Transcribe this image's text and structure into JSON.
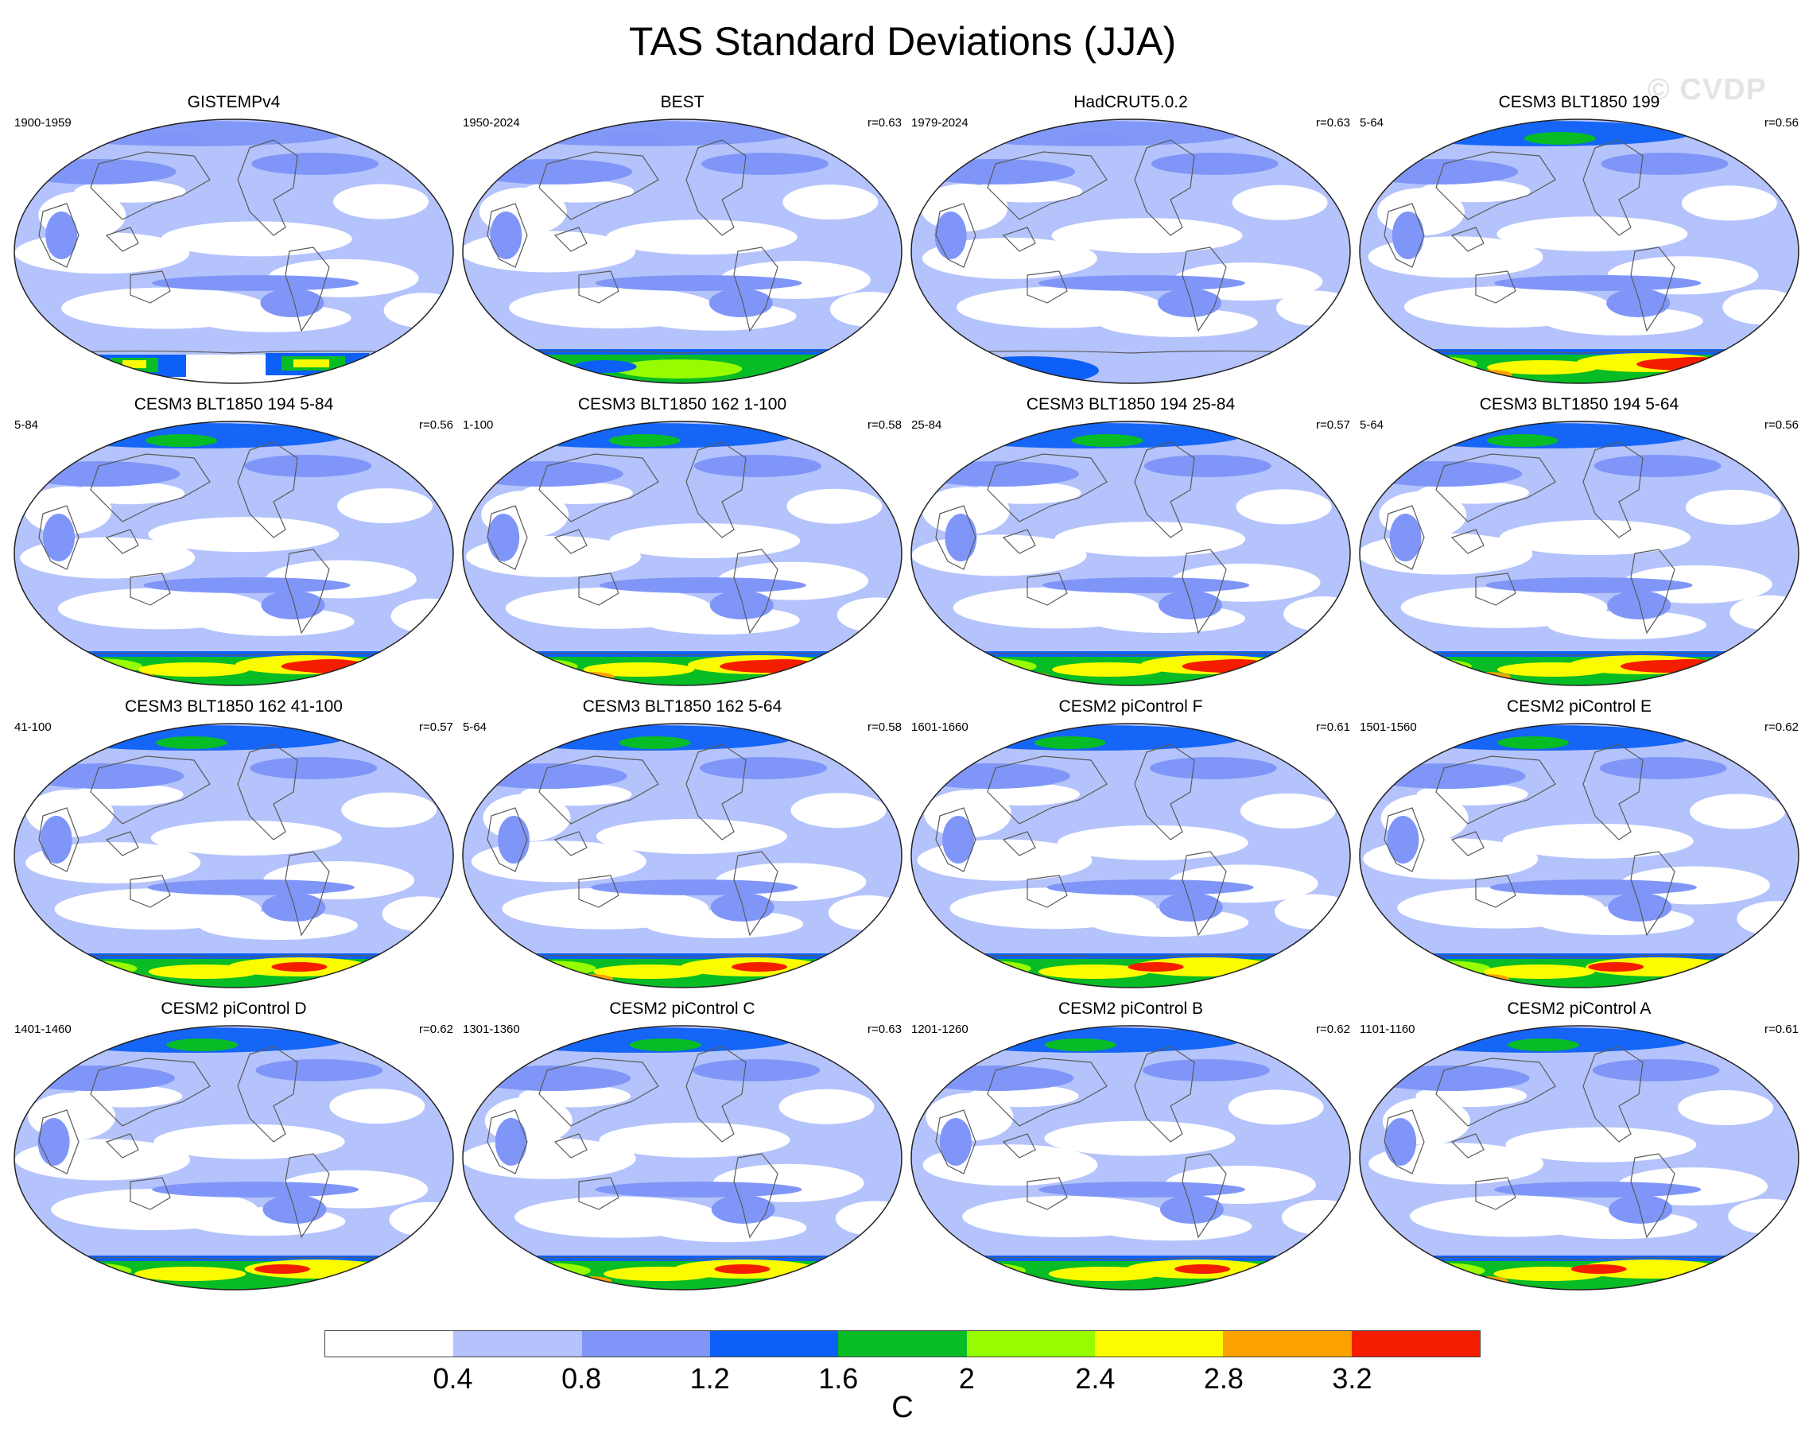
{
  "title": "TAS Standard Deviations (JJA)",
  "watermark": "© CVDP",
  "colors": {
    "levels": [
      "#ffffff",
      "#b4c3fb",
      "#7f96f8",
      "#0d60f7",
      "#08bc25",
      "#98fc00",
      "#fcfc00",
      "#fca200",
      "#f51d00"
    ],
    "coastline": "#5a5a5a",
    "outline": "#222222"
  },
  "panels": [
    {
      "title": "GISTEMPv4",
      "range": "1900-1959",
      "r": ""
    },
    {
      "title": "BEST",
      "range": "1950-2024",
      "r": "r=0.63"
    },
    {
      "title": "HadCRUT5.0.2",
      "range": "1979-2024",
      "r": "r=0.63"
    },
    {
      "title": "CESM3 BLT1850 199",
      "range": "5-64",
      "r": "r=0.56"
    },
    {
      "title": "CESM3 BLT1850 194 5-84",
      "range": "5-84",
      "r": "r=0.56"
    },
    {
      "title": "CESM3 BLT1850 162 1-100",
      "range": "1-100",
      "r": "r=0.58"
    },
    {
      "title": "CESM3 BLT1850 194 25-84",
      "range": "25-84",
      "r": "r=0.57"
    },
    {
      "title": "CESM3 BLT1850 194 5-64",
      "range": "5-64",
      "r": "r=0.56"
    },
    {
      "title": "CESM3 BLT1850 162 41-100",
      "range": "41-100",
      "r": "r=0.57"
    },
    {
      "title": "CESM3 BLT1850 162 5-64",
      "range": "5-64",
      "r": "r=0.58"
    },
    {
      "title": "CESM2 piControl F",
      "range": "1601-1660",
      "r": "r=0.61"
    },
    {
      "title": "CESM2 piControl E",
      "range": "1501-1560",
      "r": "r=0.62"
    },
    {
      "title": "CESM2 piControl D",
      "range": "1401-1460",
      "r": "r=0.62"
    },
    {
      "title": "CESM2 piControl C",
      "range": "1301-1360",
      "r": "r=0.63"
    },
    {
      "title": "CESM2 piControl B",
      "range": "1201-1260",
      "r": "r=0.62"
    },
    {
      "title": "CESM2 piControl A",
      "range": "1101-1160",
      "r": "r=0.61"
    }
  ],
  "colorbar": {
    "labels": [
      "0.4",
      "0.8",
      "1.2",
      "1.6",
      "2",
      "2.4",
      "2.8",
      "3.2"
    ],
    "unit": "C"
  }
}
